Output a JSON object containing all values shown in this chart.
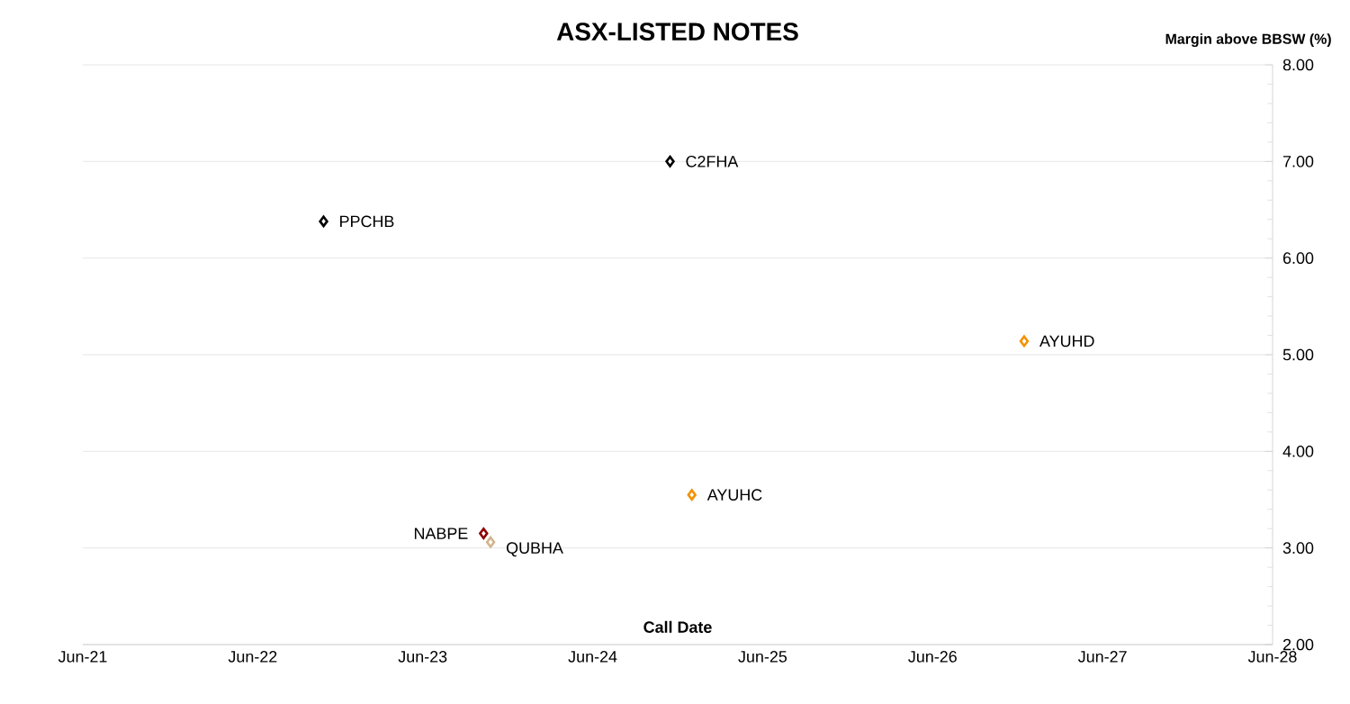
{
  "chart_data": {
    "type": "scatter",
    "title": "ASX-LISTED NOTES",
    "xlabel": "Call Date",
    "ylabel": "Margin above BBSW (%)",
    "series": [
      {
        "name": "PPCHB",
        "color": "#000000",
        "x": [
          "2022-11-01"
        ],
        "values": [
          6.38
        ]
      },
      {
        "name": "C2FHA",
        "color": "#000000",
        "x": [
          "2024-11-15"
        ],
        "values": [
          7.0
        ]
      },
      {
        "name": "AYUHD",
        "color": "#f39200",
        "x": [
          "2026-12-15"
        ],
        "values": [
          5.14
        ]
      },
      {
        "name": "AYUHC",
        "color": "#f39200",
        "x": [
          "2025-01-01"
        ],
        "values": [
          3.55
        ]
      },
      {
        "name": "NABPE",
        "color": "#8b0000",
        "x": [
          "2023-10-10"
        ],
        "values": [
          3.15
        ]
      },
      {
        "name": "QUBHA",
        "color": "#d2b48c",
        "x": [
          "2023-10-25"
        ],
        "values": [
          3.06
        ]
      }
    ],
    "xlim": [
      "2021-06",
      "2028-06"
    ],
    "xticks": [
      {
        "value": "2021-06",
        "label": "Jun-21"
      },
      {
        "value": "2022-06",
        "label": "Jun-22"
      },
      {
        "value": "2023-06",
        "label": "Jun-23"
      },
      {
        "value": "2024-06",
        "label": "Jun-24"
      },
      {
        "value": "2025-06",
        "label": "Jun-25"
      },
      {
        "value": "2026-06",
        "label": "Jun-26"
      },
      {
        "value": "2027-06",
        "label": "Jun-27"
      },
      {
        "value": "2028-06",
        "label": "Jun-28"
      }
    ],
    "ylim": [
      2,
      8
    ],
    "yticks": [
      {
        "value": 2,
        "label": "2.00"
      },
      {
        "value": 3,
        "label": "3.00"
      },
      {
        "value": 4,
        "label": "4.00"
      },
      {
        "value": 5,
        "label": "5.00"
      },
      {
        "value": 6,
        "label": "6.00"
      },
      {
        "value": 7,
        "label": "7.00"
      },
      {
        "value": 8,
        "label": "8.00"
      }
    ],
    "grid": "y",
    "marker": "diamond"
  }
}
